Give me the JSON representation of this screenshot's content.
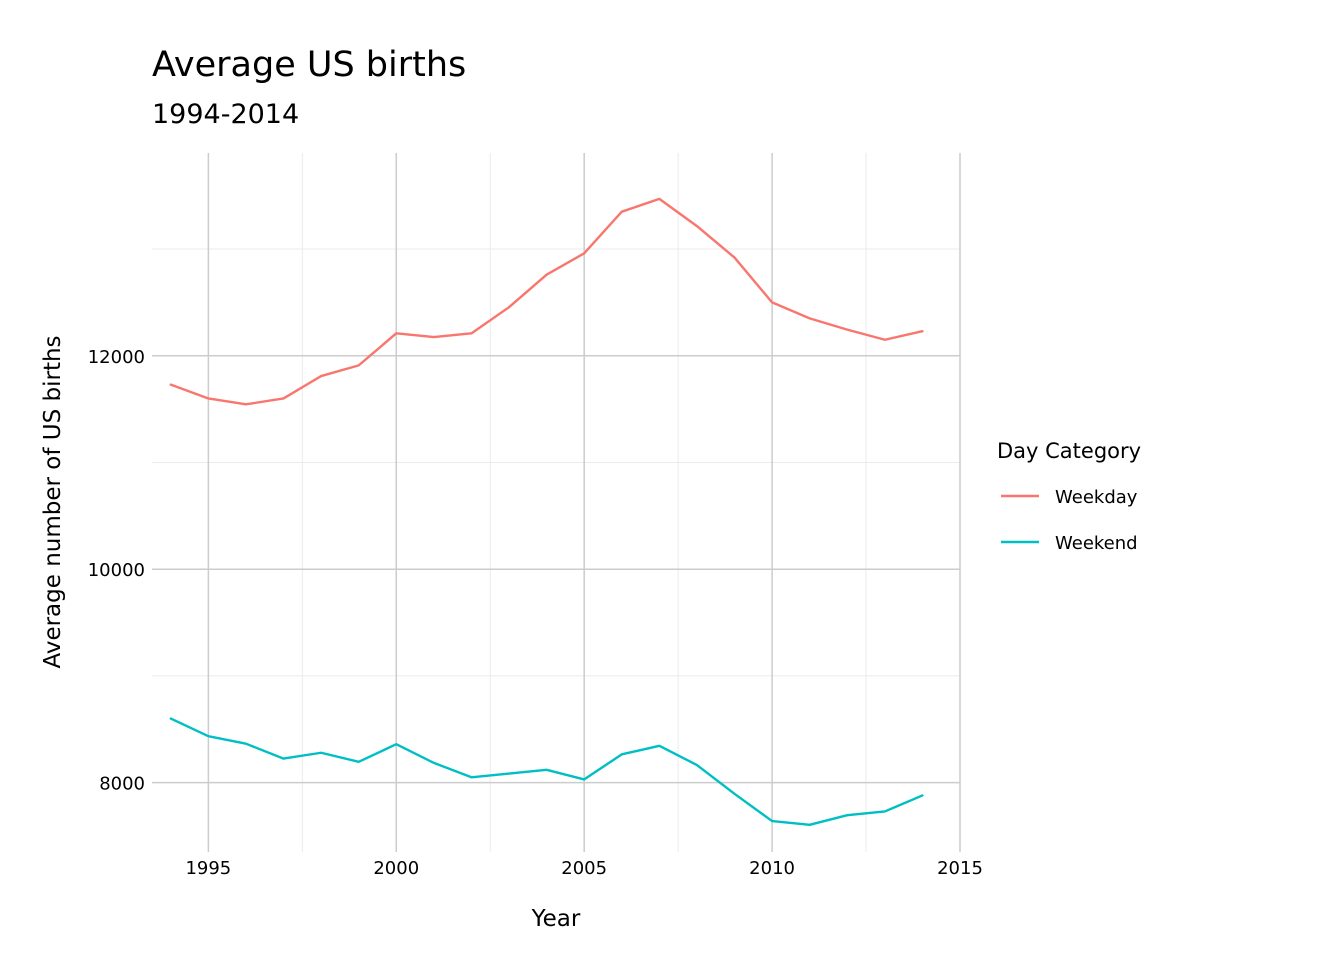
{
  "chart_data": {
    "type": "line",
    "title": "Average US births",
    "subtitle": "1994-2014",
    "xlabel": "Year",
    "ylabel": "Average number of US births",
    "xlim": [
      1993.5,
      2015
    ],
    "ylim": [
      7350,
      13900
    ],
    "x_ticks": [
      1995,
      2000,
      2005,
      2010,
      2015
    ],
    "x_tick_labels": [
      "1995",
      "2000",
      "2005",
      "2010",
      "2015"
    ],
    "x_minor_ticks": [
      1997.5,
      2002.5,
      2007.5,
      2012.5
    ],
    "y_ticks": [
      8000,
      10000,
      12000
    ],
    "y_tick_labels": [
      "8000",
      "10000",
      "12000"
    ],
    "y_minor_ticks": [
      9000,
      11000,
      13000
    ],
    "grid": true,
    "legend": {
      "title": "Day Category",
      "placement": "right"
    },
    "x": [
      1994,
      1995,
      1996,
      1997,
      1998,
      1999,
      2000,
      2001,
      2002,
      2003,
      2004,
      2005,
      2006,
      2007,
      2008,
      2009,
      2010,
      2011,
      2012,
      2013,
      2014
    ],
    "series": [
      {
        "name": "Weekday",
        "color": "#F8766D",
        "values": [
          11730,
          11600,
          11545,
          11600,
          11810,
          11910,
          12210,
          12175,
          12210,
          12455,
          12760,
          12960,
          13350,
          13470,
          13215,
          12920,
          12500,
          12350,
          12245,
          12150,
          12230
        ]
      },
      {
        "name": "Weekend",
        "color": "#00BFC4",
        "values": [
          8600,
          8435,
          8365,
          8225,
          8280,
          8195,
          8360,
          8185,
          8050,
          8085,
          8120,
          8030,
          8265,
          8345,
          8165,
          7895,
          7640,
          7605,
          7695,
          7730,
          7880
        ]
      }
    ]
  }
}
